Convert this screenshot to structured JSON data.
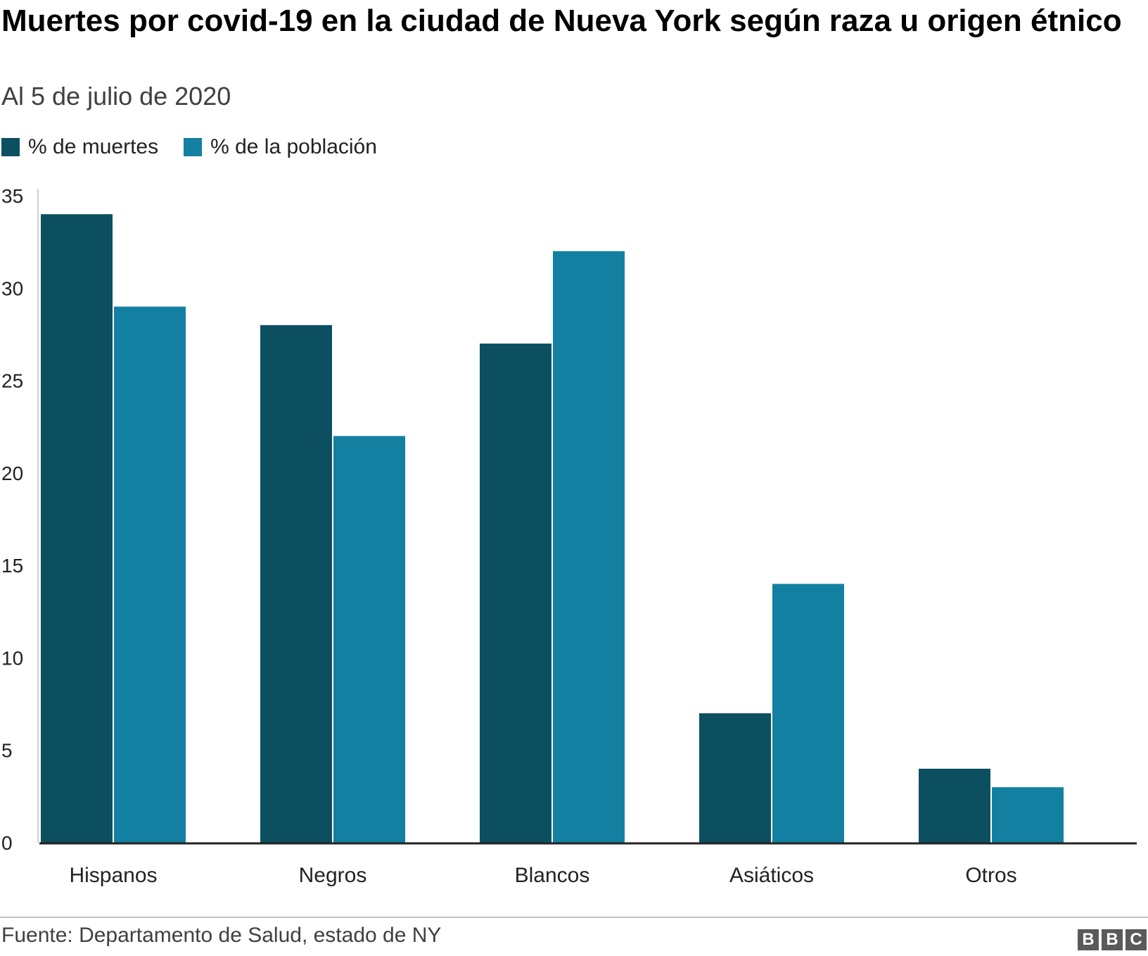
{
  "header": {
    "title": "Muertes por covid-19 en la ciudad de Nueva York según raza u origen étnico",
    "subtitle": "Al 5 de julio de 2020"
  },
  "footer": {
    "source": "Fuente: Departamento de Salud, estado de NY",
    "logo": [
      "B",
      "B",
      "C"
    ]
  },
  "chart_data": {
    "type": "bar",
    "title": "Muertes por covid-19 en la ciudad de Nueva York según raza u origen étnico",
    "subtitle": "Al 5 de julio de 2020",
    "categories": [
      "Hispanos",
      "Negros",
      "Blancos",
      "Asiáticos",
      "Otros"
    ],
    "series": [
      {
        "name": "% de muertes",
        "color": "#0b4f60",
        "values": [
          34,
          28,
          27,
          7,
          4
        ]
      },
      {
        "name": "% de la población",
        "color": "#1380a1",
        "values": [
          29,
          22,
          32,
          14,
          3
        ]
      }
    ],
    "ylim": [
      0,
      35
    ],
    "yticks": [
      0,
      5,
      10,
      15,
      20,
      25,
      30,
      35
    ],
    "xlabel": "",
    "ylabel": "",
    "grid": false,
    "legend": "top-left"
  }
}
